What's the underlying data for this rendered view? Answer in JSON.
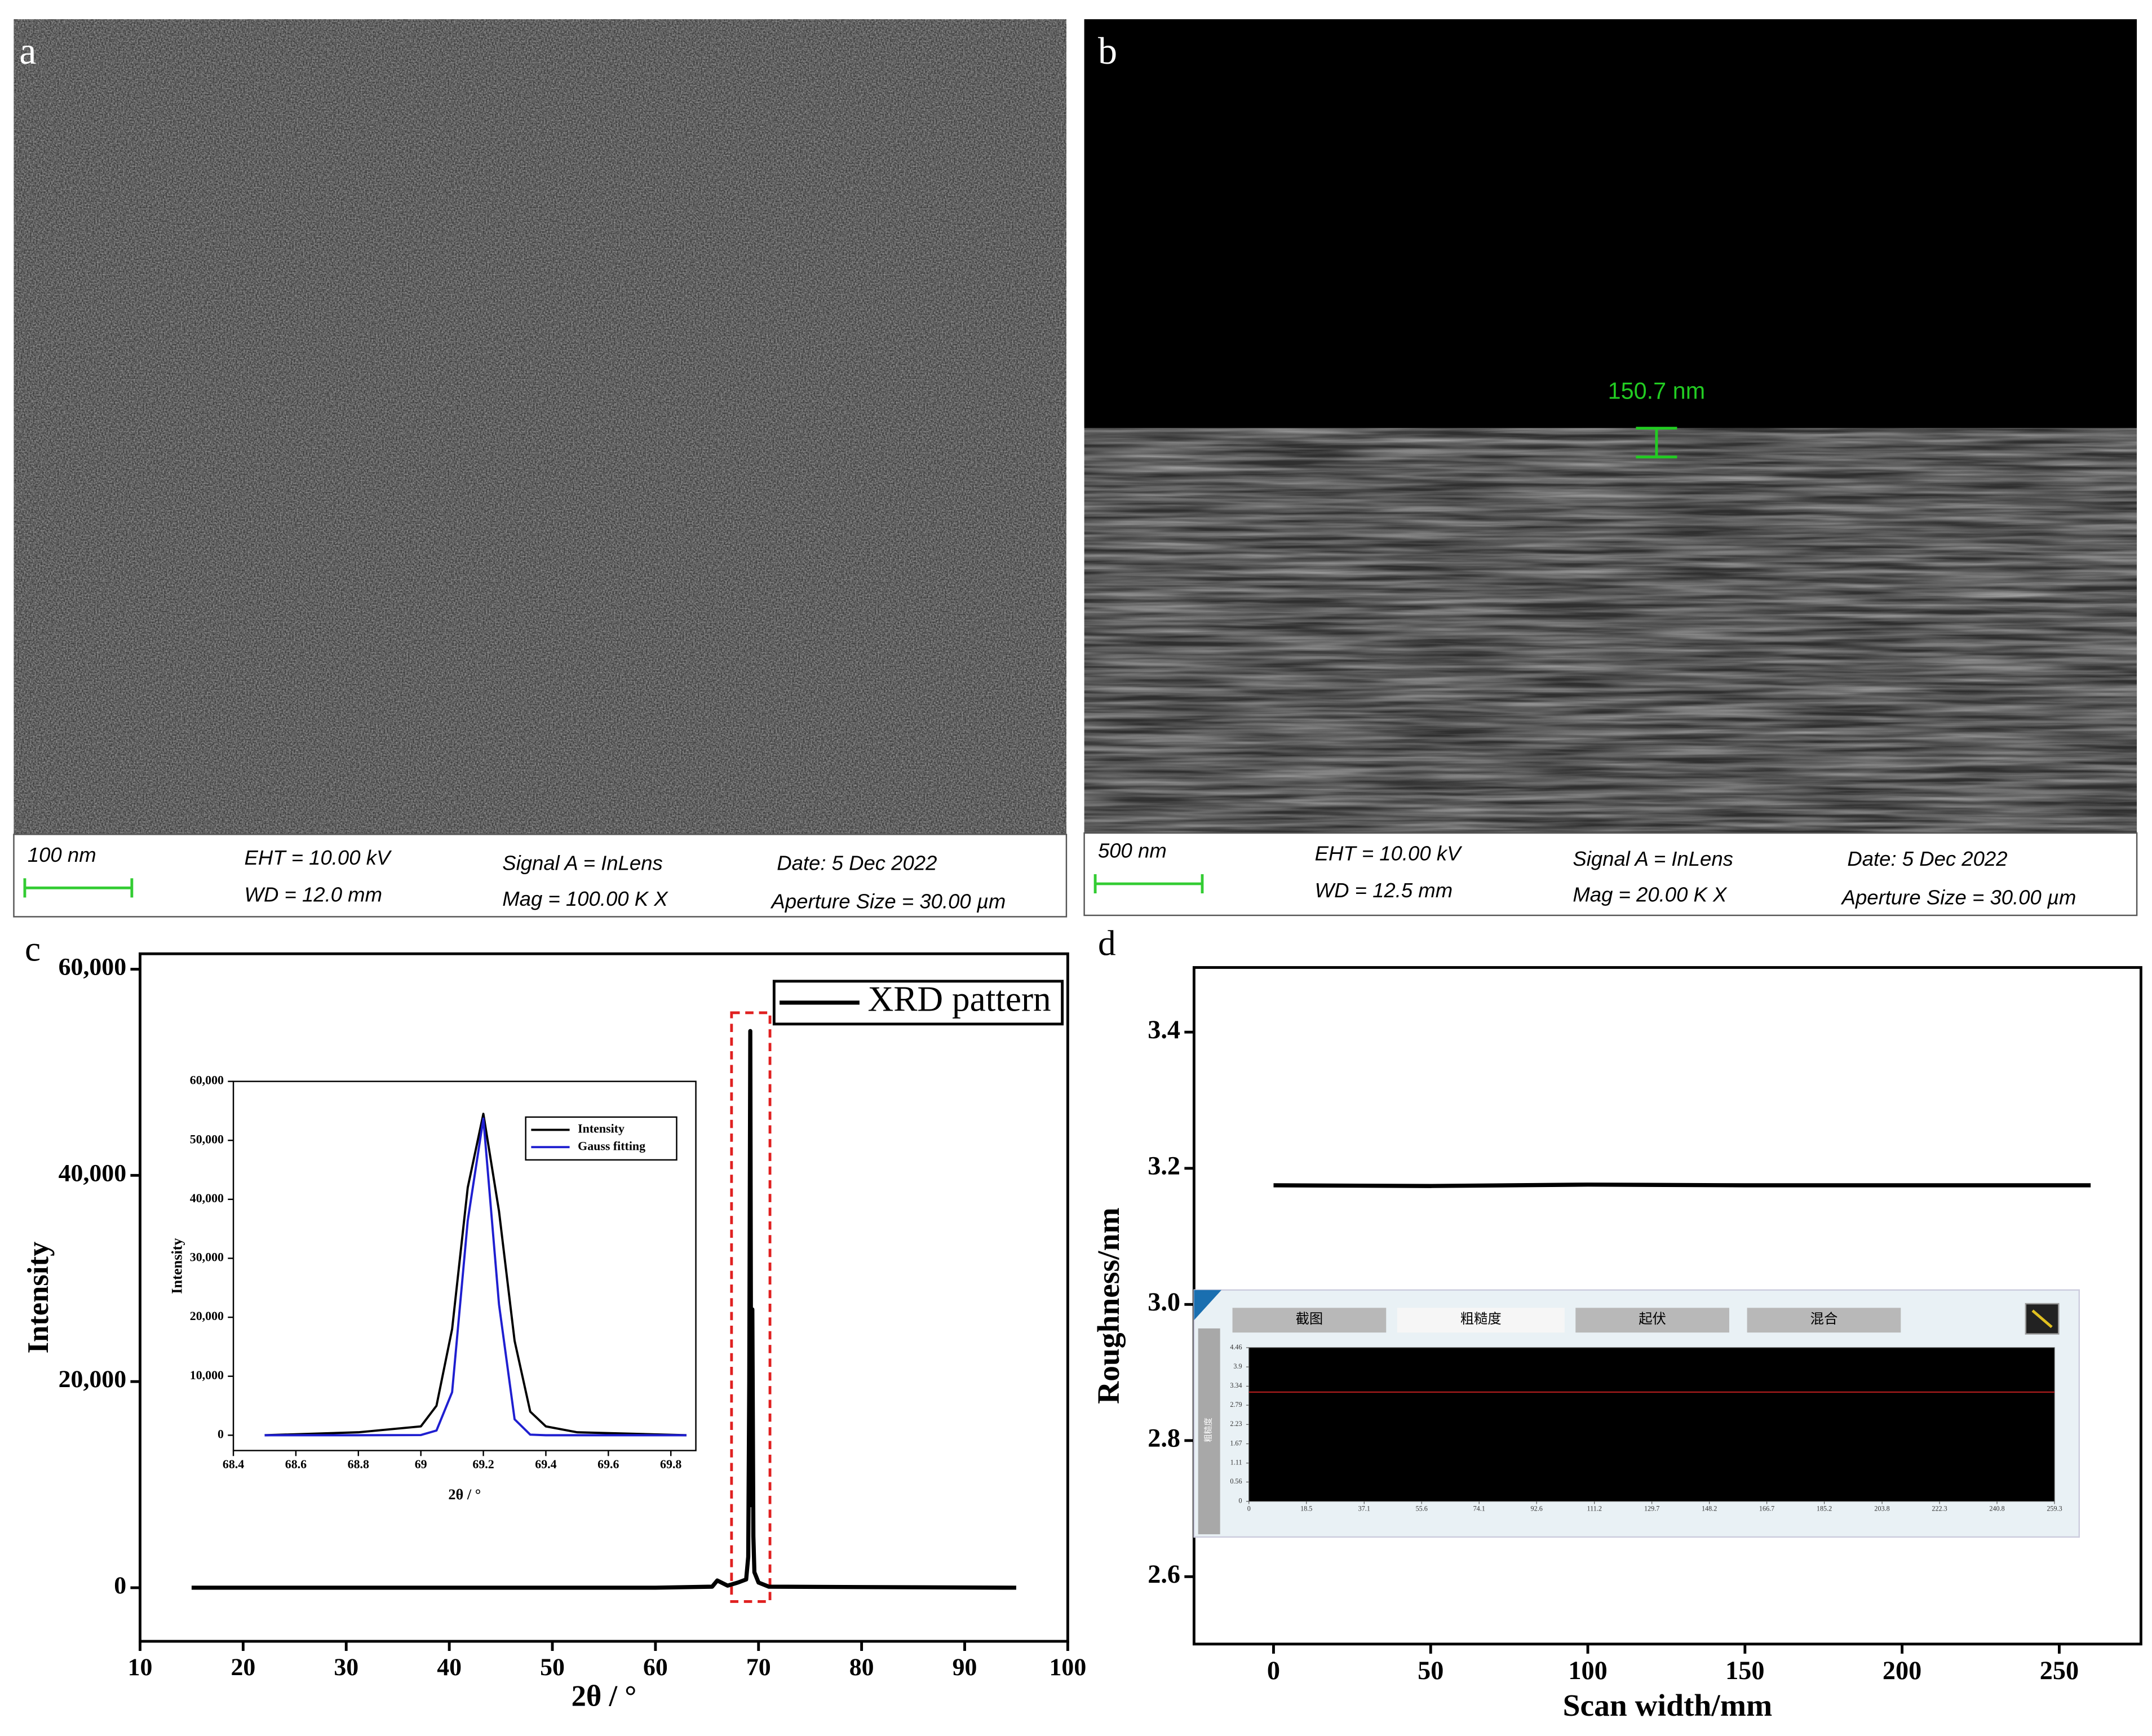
{
  "sem_panels": [
    {
      "label": "a",
      "scale_bar": "100 nm",
      "eht": "EHT = 10.00 kV",
      "wd": "WD = 12.0 mm",
      "signal": "Signal A = InLens",
      "mag": "Mag = 100.00 K X",
      "date": "Date: 5 Dec 2022",
      "aperture": "Aperture Size = 30.00 µm"
    },
    {
      "label": "b",
      "scale_bar": "500 nm",
      "eht": "EHT = 10.00 kV",
      "wd": "WD = 12.5 mm",
      "signal": "Signal A = InLens",
      "mag": "Mag = 20.00 K X",
      "date": "Date: 5 Dec 2022",
      "aperture": "Aperture Size = 30.00 µm",
      "annotation": "150.7 nm"
    }
  ],
  "chart_data": [
    {
      "type": "line",
      "label": "c",
      "x_label": "2θ / °",
      "y_label": "Intensity",
      "x": [
        15,
        60,
        65.5,
        66,
        67,
        68,
        68.8,
        69.0,
        69.1,
        69.2,
        69.3,
        69.4,
        69.5,
        69.6,
        70,
        71,
        95
      ],
      "series": [
        {
          "name": "XRD pattern",
          "color": "#000000",
          "values": [
            0,
            0,
            100,
            700,
            200,
            500,
            800,
            3000,
            20000,
            54000,
            8000,
            27000,
            5000,
            1500,
            500,
            100,
            0
          ]
        }
      ],
      "xlim": [
        10,
        100
      ],
      "xticks": [
        10,
        20,
        30,
        40,
        50,
        60,
        70,
        80,
        90,
        100
      ],
      "ylim": [
        -5200,
        61500
      ],
      "yticks": [
        0,
        {
          "value": 20000,
          "label": "20,000"
        },
        {
          "value": 40000,
          "label": "40,000"
        },
        {
          "value": 60000,
          "label": "60,000"
        }
      ],
      "legend": "upper right"
    },
    {
      "type": "line",
      "x_label": "2θ / °",
      "y_label": "Intensity",
      "x": [
        68.5,
        68.8,
        69.0,
        69.05,
        69.1,
        69.15,
        69.2,
        69.25,
        69.3,
        69.35,
        69.4,
        69.5,
        69.85
      ],
      "series": [
        {
          "name": "Intensity",
          "color": "#000000",
          "values": [
            0,
            500,
            1500,
            5000,
            18000,
            42000,
            54500,
            38000,
            16000,
            4000,
            1500,
            500,
            0
          ]
        },
        {
          "name": "Gauss fitting",
          "color": "#1f1fd0",
          "values": [
            0,
            0,
            30,
            800,
            7300,
            36400,
            53700,
            22200,
            2700,
            100,
            0,
            0,
            0
          ]
        }
      ],
      "xlim": [
        68.4,
        69.88
      ],
      "xticks": [
        68.4,
        68.6,
        68.8,
        69.0,
        69.2,
        69.4,
        69.6,
        69.8
      ],
      "ylim": [
        -2600,
        60000
      ],
      "yticks": [
        0,
        {
          "value": 10000,
          "label": "10,000"
        },
        {
          "value": 20000,
          "label": "20,000"
        },
        {
          "value": 30000,
          "label": "30,000"
        },
        {
          "value": 40000,
          "label": "40,000"
        },
        {
          "value": 50000,
          "label": "50,000"
        },
        {
          "value": 60000,
          "label": "60,000"
        }
      ],
      "legend": "upper right"
    },
    {
      "type": "line",
      "label": "d",
      "x_label": "Scan width/mm",
      "y_label": "Roughness/nm",
      "x": [
        0,
        50,
        100,
        150,
        200,
        260
      ],
      "values": [
        3.175,
        3.174,
        3.176,
        3.175,
        3.175,
        3.175
      ],
      "color": "#000000",
      "xlim": [
        -25.3,
        276
      ],
      "xticks": [
        0,
        50,
        100,
        150,
        200,
        250
      ],
      "ylim": [
        2.501,
        3.495
      ],
      "yticks": [
        2.6,
        2.8,
        {
          "value": 3,
          "label": "3.0"
        },
        3.2,
        3.4
      ]
    },
    {
      "type": "line",
      "x": [
        0,
        259.3
      ],
      "values": [
        3.17,
        3.17
      ],
      "color": "#cc2222",
      "xlim": [
        0,
        259.3
      ],
      "xticks": [
        0,
        18.5,
        37.1,
        55.6,
        74.1,
        92.6,
        111.2,
        129.7,
        148.2,
        166.7,
        185.2,
        203.8,
        222.3,
        240.8,
        259.3
      ],
      "ylim": [
        0,
        4.46
      ],
      "yticks": [
        0,
        0.56,
        1.11,
        1.67,
        2.23,
        2.79,
        3.34,
        3.9,
        4.46
      ]
    }
  ],
  "roughness_screen": {
    "tabs": [
      "截图",
      "粗糙度",
      "起伏",
      "混合"
    ],
    "side_label": "粗糙度"
  }
}
